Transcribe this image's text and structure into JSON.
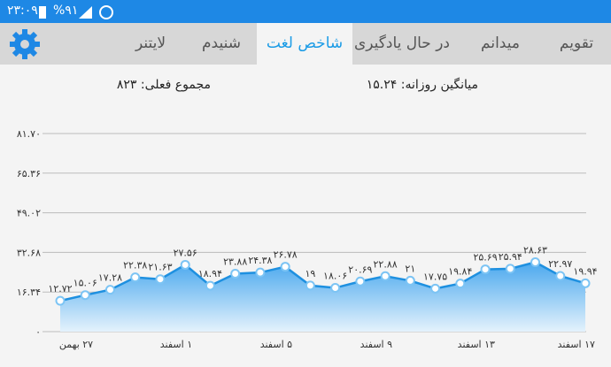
{
  "status_bar": {
    "time": "۲۳:۰۹",
    "battery": "%۹۱"
  },
  "tabs": [
    "تقویم",
    "میدانم",
    "در حال یادگیری",
    "شاخص لغت",
    "شنیدم",
    "لایتنر"
  ],
  "active_tab": 3,
  "stats": {
    "daily_average": "میانگین روزانه: ۱۵.۲۴",
    "current_total": "مجموع فعلی: ۸۲۳"
  },
  "chart_data": {
    "type": "area",
    "categories": [
      "۲۷ بهمن",
      null,
      null,
      null,
      "۱ اسفند",
      null,
      null,
      null,
      "۵ اسفند",
      null,
      null,
      null,
      "۹ اسفند",
      null,
      null,
      null,
      "۱۳ اسفند",
      null,
      null,
      null,
      "۱۷ اسفند",
      null
    ],
    "values": [
      12.72,
      15.06,
      17.28,
      22.38,
      21.63,
      27.56,
      18.94,
      23.88,
      24.38,
      26.78,
      19,
      18.06,
      20.69,
      22.88,
      21,
      17.75,
      19.84,
      25.69,
      25.94,
      28.63,
      22.97,
      19.94
    ],
    "value_labels": [
      "۱۲.۷۲",
      "۱۵.۰۶",
      "۱۷.۲۸",
      "۲۲.۳۸",
      "۲۱.۶۳",
      "۲۷.۵۶",
      "۱۸.۹۴",
      "۲۳.۸۸",
      "۲۴.۳۸",
      "۲۶.۷۸",
      "۱۹",
      "۱۸.۰۶",
      "۲۰.۶۹",
      "۲۲.۸۸",
      "۲۱",
      "۱۷.۷۵",
      "۱۹.۸۴",
      "۲۵.۶۹",
      "۲۵.۹۴",
      "۲۸.۶۳",
      "۲۲.۹۷",
      "۱۹.۹۴"
    ],
    "color": "#1e90e0",
    "ylim": [
      0,
      81.7
    ],
    "yticks": [
      {
        "value": 0,
        "label": "۰"
      },
      {
        "value": 16.34,
        "label": "۱۶.۳۴"
      },
      {
        "value": 32.68,
        "label": "۳۲.۶۸"
      },
      {
        "value": 49.02,
        "label": "۴۹.۰۲"
      },
      {
        "value": 65.36,
        "label": "۶۵.۳۶"
      },
      {
        "value": 81.7,
        "label": "۸۱.۷۰"
      }
    ],
    "grid": true
  }
}
